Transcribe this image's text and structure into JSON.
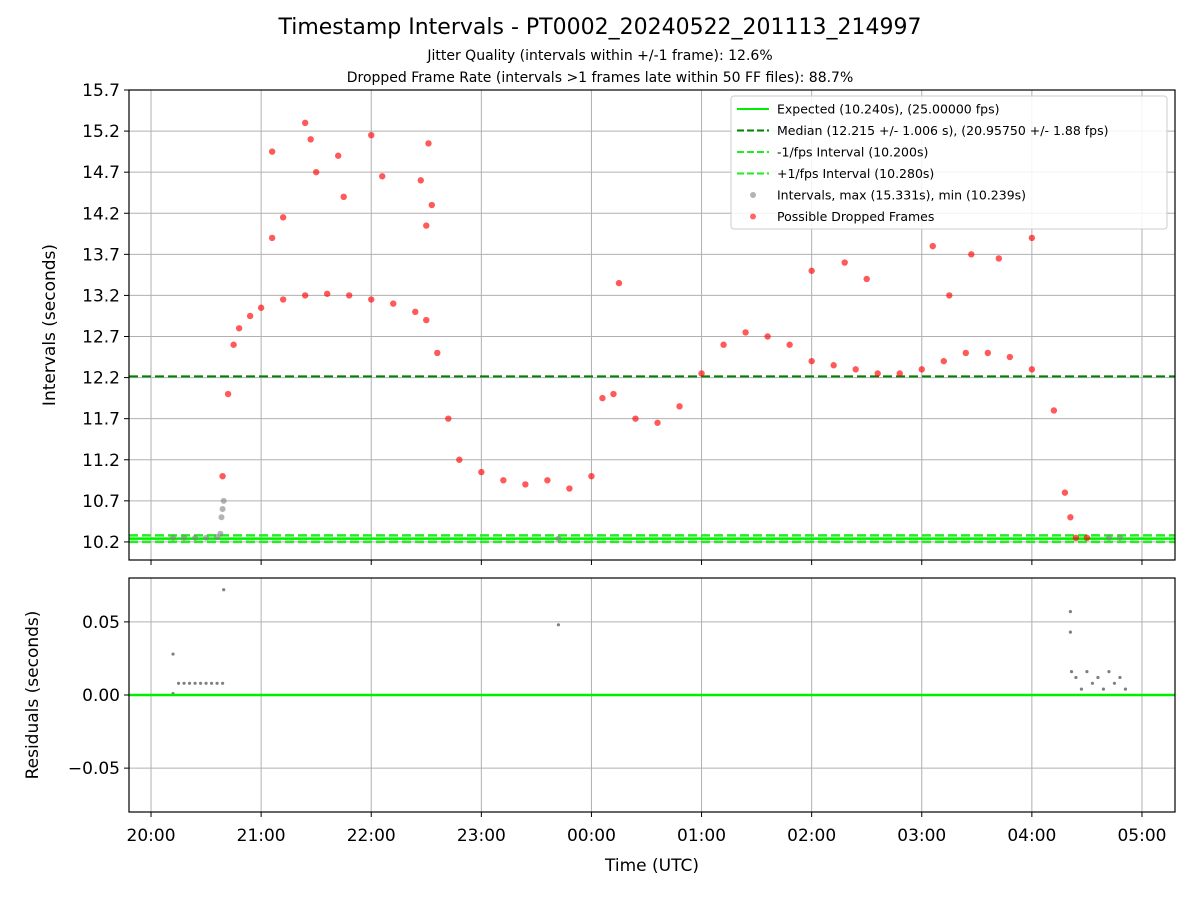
{
  "title": "Timestamp Intervals - PT0002_20240522_201113_214997",
  "subtitle_jitter": "Jitter Quality (intervals within +/-1 frame): 12.6%",
  "subtitle_dropped": "Dropped Frame Rate (intervals >1 frames late within 50 FF files): 88.7%",
  "colors": {
    "expected": "#00ee00",
    "median": "#008000",
    "fps_interval": "#22ee22",
    "intervals": "#808080",
    "dropped": "#ff0000",
    "grid": "#b0b0b0"
  },
  "chart_data": [
    {
      "type": "scatter",
      "panel": "top",
      "ylabel": "Intervals (seconds)",
      "ylim": [
        9.98,
        15.7
      ],
      "yticks": [
        "10.2",
        "10.7",
        "11.2",
        "11.7",
        "12.2",
        "12.7",
        "13.2",
        "13.7",
        "14.2",
        "14.7",
        "15.2",
        "15.7"
      ],
      "ytick_values": [
        10.2,
        10.7,
        11.2,
        11.7,
        12.2,
        12.7,
        13.2,
        13.7,
        14.2,
        14.7,
        15.2,
        15.7
      ],
      "grid": true,
      "legend_position": "top-right",
      "legend": [
        {
          "label": "Expected (10.240s), (25.00000 fps)",
          "style": "solid",
          "color": "#00ee00"
        },
        {
          "label": "Median (12.215 +/- 1.006 s), (20.95750 +/- 1.88 fps)",
          "style": "dashed",
          "color": "#008000"
        },
        {
          "label": "-1/fps Interval (10.200s)",
          "style": "dashed",
          "color": "#22ee22"
        },
        {
          "label": "+1/fps Interval (10.280s)",
          "style": "dashed",
          "color": "#22ee22"
        },
        {
          "label": "Intervals, max (15.331s), min (10.239s)",
          "style": "marker",
          "color": "#808080"
        },
        {
          "label": "Possible Dropped Frames",
          "style": "marker",
          "color": "#ff0000"
        }
      ],
      "hlines": {
        "expected": 10.24,
        "median": 12.215,
        "minus_fps": 10.2,
        "plus_fps": 10.28
      },
      "series": [
        {
          "name": "Intervals, max (15.331s), min (10.239s)",
          "x_hours_since_2000": [
            0.2,
            0.3,
            0.4,
            0.5,
            0.6,
            0.63,
            0.64,
            0.65,
            0.66,
            3.7,
            8.7,
            8.8
          ],
          "y": [
            10.25,
            10.25,
            10.25,
            10.25,
            10.26,
            10.3,
            10.5,
            10.6,
            10.7,
            10.24,
            10.25,
            10.25
          ]
        },
        {
          "name": "Possible Dropped Frames",
          "x_hours_since_2000": [
            0.65,
            0.7,
            0.75,
            0.8,
            0.9,
            1.0,
            1.2,
            1.4,
            1.6,
            1.8,
            2.0,
            2.2,
            2.4,
            2.5,
            2.6,
            2.7,
            2.8,
            3.0,
            3.2,
            3.4,
            3.6,
            3.8,
            4.0,
            4.1,
            4.2,
            4.4,
            4.6,
            4.8,
            5.0,
            5.2,
            5.4,
            5.6,
            5.8,
            6.0,
            6.2,
            6.4,
            6.6,
            6.8,
            7.0,
            7.2,
            7.4,
            7.6,
            7.8,
            8.0,
            8.2,
            8.3,
            8.35,
            8.4,
            8.5
          ],
          "y": [
            11.0,
            12.0,
            12.6,
            12.8,
            12.95,
            13.05,
            13.15,
            13.2,
            13.22,
            13.2,
            13.15,
            13.1,
            13.0,
            12.9,
            12.5,
            11.7,
            11.2,
            11.05,
            10.95,
            10.9,
            10.95,
            10.85,
            11.0,
            11.95,
            12.0,
            11.7,
            11.65,
            11.85,
            12.25,
            12.6,
            12.75,
            12.7,
            12.6,
            12.4,
            12.35,
            12.3,
            12.25,
            12.25,
            12.3,
            12.4,
            12.5,
            12.5,
            12.45,
            12.3,
            11.8,
            10.8,
            10.5,
            10.25,
            10.25
          ],
          "outliers_x_hours_since_2000": [
            1.1,
            1.1,
            1.2,
            1.4,
            1.45,
            1.5,
            1.7,
            1.75,
            2.0,
            2.1,
            2.45,
            2.5,
            2.52,
            2.55,
            4.25,
            6.0,
            6.3,
            6.5,
            7.1,
            7.25,
            7.45,
            7.7,
            8.0
          ],
          "outliers_y": [
            14.95,
            13.9,
            14.15,
            15.3,
            15.1,
            14.7,
            14.9,
            14.4,
            15.15,
            14.65,
            14.6,
            14.05,
            15.05,
            14.3,
            13.35,
            13.5,
            13.6,
            13.4,
            13.8,
            13.2,
            13.7,
            13.65,
            13.9
          ]
        }
      ]
    },
    {
      "type": "scatter",
      "panel": "bottom",
      "xlabel": "Time (UTC)",
      "ylabel": "Residuals (seconds)",
      "ylim": [
        -0.08,
        0.08
      ],
      "yticks": [
        "−0.05",
        "0.00",
        "0.05"
      ],
      "ytick_values": [
        -0.05,
        0.0,
        0.05
      ],
      "grid": true,
      "xlim_hours_since_2000": [
        -0.2,
        9.3
      ],
      "xticks": [
        "20:00",
        "21:00",
        "22:00",
        "23:00",
        "00:00",
        "01:00",
        "02:00",
        "03:00",
        "04:00",
        "05:00"
      ],
      "xtick_values_hours_since_2000": [
        0,
        1,
        2,
        3,
        4,
        5,
        6,
        7,
        8,
        9
      ],
      "zero_line": 0.0,
      "series": [
        {
          "name": "residuals",
          "x_hours_since_2000": [
            0.2,
            0.2,
            0.25,
            0.3,
            0.35,
            0.4,
            0.45,
            0.5,
            0.55,
            0.6,
            0.65,
            0.66,
            3.7,
            8.35,
            8.35,
            8.36,
            8.4,
            8.45,
            8.5,
            8.55,
            8.6,
            8.65,
            8.7,
            8.75,
            8.8,
            8.85
          ],
          "y": [
            0.028,
            0.001,
            0.008,
            0.008,
            0.008,
            0.008,
            0.008,
            0.008,
            0.008,
            0.008,
            0.008,
            0.072,
            0.048,
            0.057,
            0.043,
            0.016,
            0.012,
            0.004,
            0.016,
            0.008,
            0.012,
            0.004,
            0.016,
            0.008,
            0.012,
            0.004
          ]
        }
      ]
    }
  ]
}
